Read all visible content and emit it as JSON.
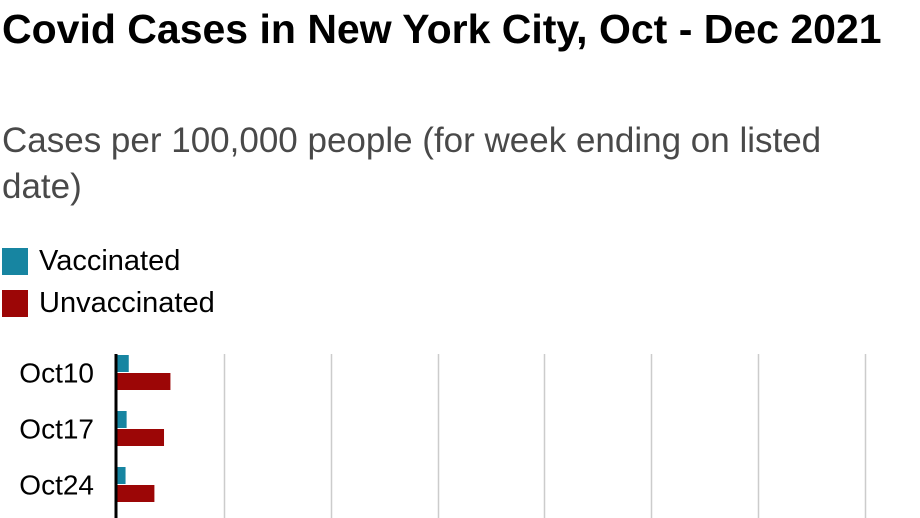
{
  "chart_data": {
    "type": "bar",
    "orientation": "horizontal",
    "title": "Covid Cases in New York City, Oct - Dec 2021",
    "subtitle": "Cases per 100,000 people (for week ending on listed date)",
    "categories": [
      "Oct10",
      "Oct17",
      "Oct24"
    ],
    "series": [
      {
        "name": "Vaccinated",
        "color": "#1785a1",
        "values": [
          11,
          9,
          8
        ]
      },
      {
        "name": "Unvaccinated",
        "color": "#9c0606",
        "values": [
          50,
          44,
          35
        ]
      }
    ],
    "xlim": [
      0,
      700
    ],
    "grid": true,
    "legend_position": "top-left"
  }
}
